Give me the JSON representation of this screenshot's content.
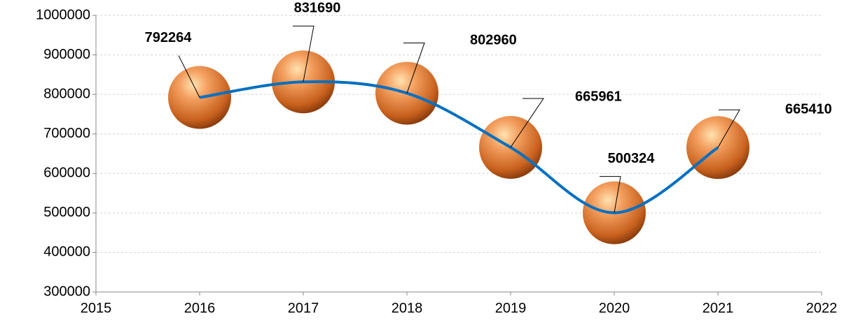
{
  "chart_data": {
    "type": "scatter",
    "x": [
      2016,
      2017,
      2018,
      2019,
      2020,
      2021
    ],
    "series": [
      {
        "values": [
          792264,
          831690,
          802960,
          665961,
          500324,
          665410
        ],
        "color": "#e07a30",
        "line_color": "#0070c0"
      }
    ],
    "xlim": [
      2015,
      2022
    ],
    "xticks": [
      2015,
      2016,
      2017,
      2018,
      2019,
      2020,
      2021,
      2022
    ],
    "ylim": [
      300000,
      1000000
    ],
    "yticks": [
      300000,
      400000,
      500000,
      600000,
      700000,
      800000,
      900000,
      1000000
    ],
    "grid": true,
    "smooth": true
  }
}
